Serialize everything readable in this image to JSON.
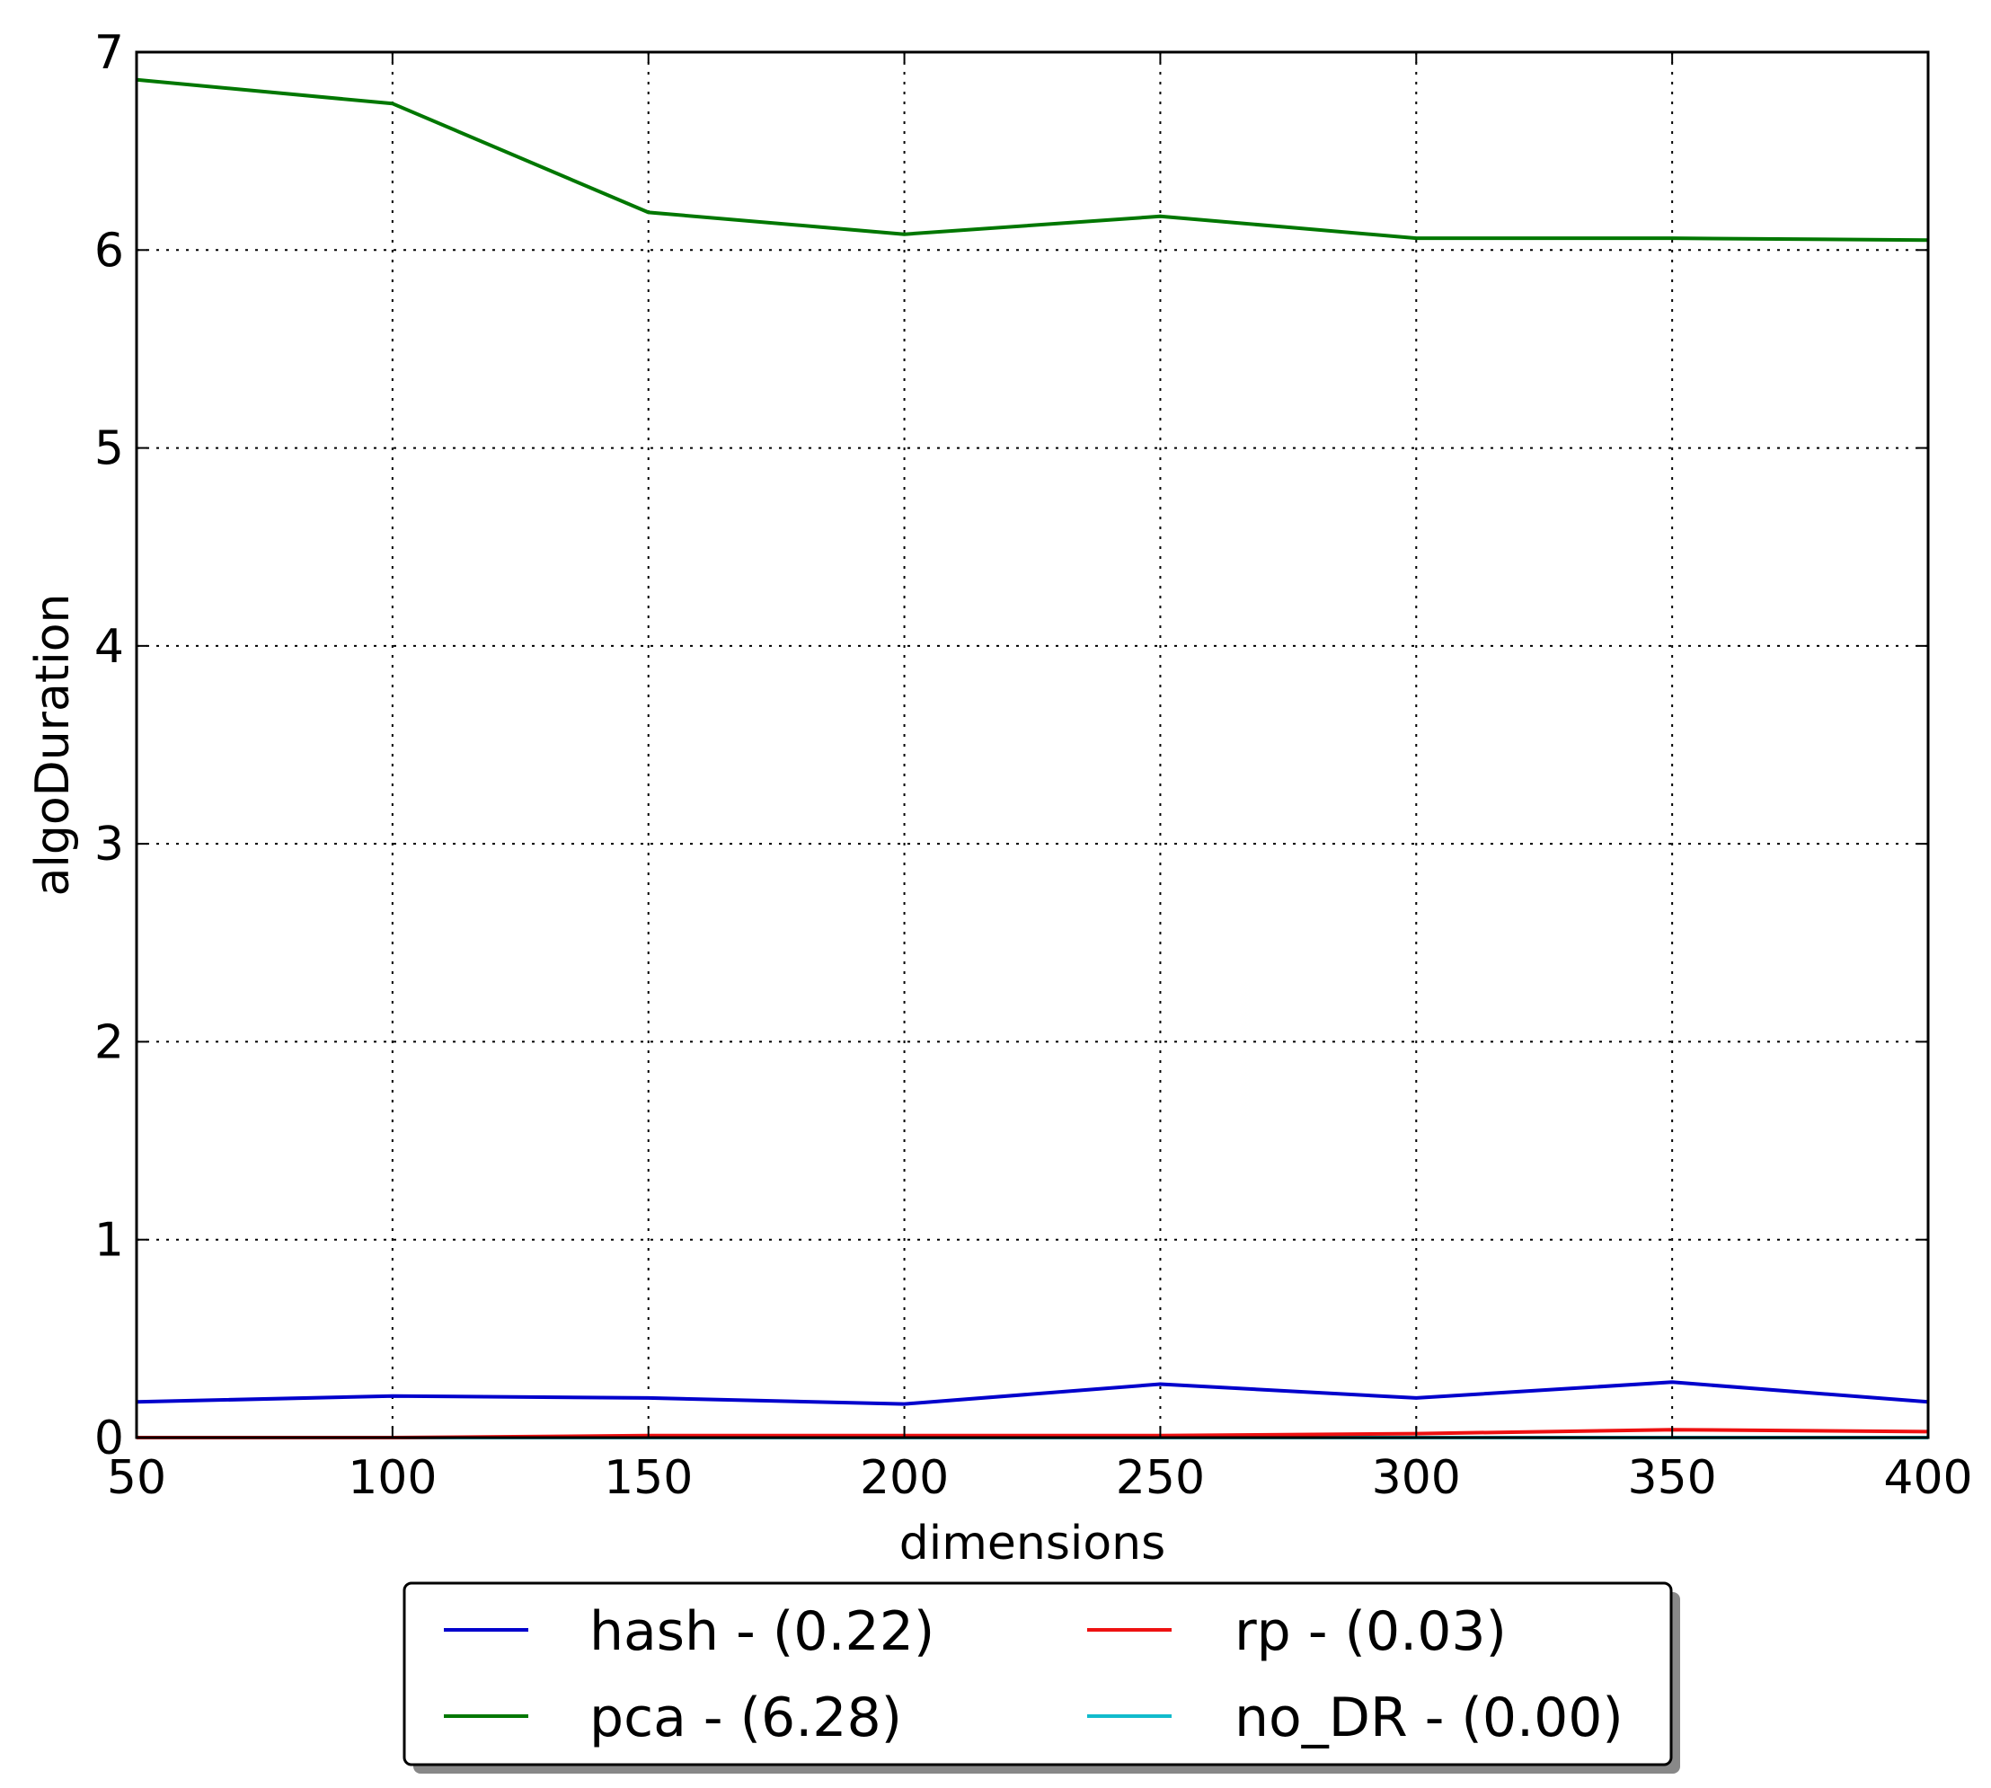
{
  "chart_data": {
    "type": "line",
    "title": "",
    "xlabel": "dimensions",
    "ylabel": "algoDuration",
    "xlim": [
      50,
      400
    ],
    "ylim": [
      0,
      7
    ],
    "xticks": [
      "50",
      "100",
      "150",
      "200",
      "250",
      "300",
      "350",
      "400"
    ],
    "yticks": [
      "0",
      "1",
      "2",
      "3",
      "4",
      "5",
      "6",
      "7"
    ],
    "grid": true,
    "legend_position": "below",
    "x": [
      50,
      100,
      150,
      200,
      250,
      300,
      350,
      400
    ],
    "series": [
      {
        "name": "hash - (0.22)",
        "color": "#0000cc",
        "values": [
          0.18,
          0.21,
          0.2,
          0.17,
          0.27,
          0.2,
          0.28,
          0.18
        ]
      },
      {
        "name": "pca - (6.28)",
        "color": "#007700",
        "values": [
          6.86,
          6.74,
          6.19,
          6.08,
          6.17,
          6.06,
          6.06,
          6.05
        ]
      },
      {
        "name": "rp - (0.03)",
        "color": "#ee1111",
        "values": [
          0.0,
          0.0,
          0.01,
          0.01,
          0.01,
          0.02,
          0.04,
          0.03
        ]
      },
      {
        "name": "no_DR - (0.00)",
        "color": "#11bbcc",
        "values": [
          0.0,
          0.0,
          0.0,
          0.0,
          0.0,
          0.0,
          0.0,
          0.0
        ]
      }
    ]
  }
}
